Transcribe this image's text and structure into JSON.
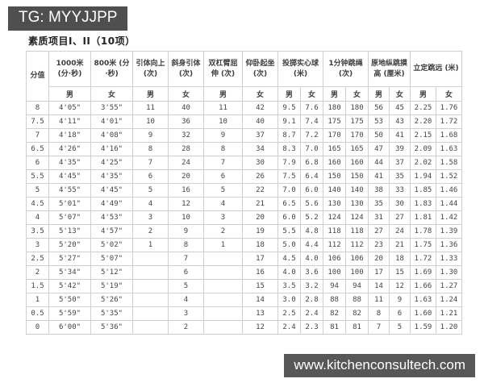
{
  "watermark_top": {
    "text": "TG: MYYJJPP"
  },
  "watermark_bottom": {
    "text": "www.kitchenconsultech.com"
  },
  "colors": {
    "badge_top_bg": "#4f4f4f",
    "badge_bottom_bg": "#575757",
    "badge_text": "#ffffff",
    "table_border": "#cfcfcf"
  },
  "table": {
    "title": "素质项目I、II（10项）",
    "score_header": "分值",
    "items": [
      {
        "label": "1000米 (分·秒)",
        "genders": [
          "男"
        ]
      },
      {
        "label": "800米 (分·秒)",
        "genders": [
          "女"
        ]
      },
      {
        "label": "引体向上 (次)",
        "genders": [
          "男"
        ]
      },
      {
        "label": "斜身引体 (次)",
        "genders": [
          "女"
        ]
      },
      {
        "label": "双杠臂屈伸 (次)",
        "genders": [
          "男"
        ]
      },
      {
        "label": "仰卧起坐 (次)",
        "genders": [
          "女"
        ]
      },
      {
        "label": "投掷实心球 (米)",
        "genders": [
          "男",
          "女"
        ]
      },
      {
        "label": "1分钟跳绳 (次)",
        "genders": [
          "男",
          "女"
        ]
      },
      {
        "label": "原地纵跳摸高 (厘米)",
        "genders": [
          "男",
          "女"
        ]
      },
      {
        "label": "立定跳远 (米)",
        "genders": [
          "男",
          "女"
        ]
      }
    ],
    "rows": [
      [
        "8",
        "4'05\"",
        "3'55\"",
        "11",
        "40",
        "11",
        "42",
        "9.5",
        "7.6",
        "180",
        "180",
        "56",
        "45",
        "2.25",
        "1.76"
      ],
      [
        "7.5",
        "4'11\"",
        "4'01\"",
        "10",
        "36",
        "10",
        "40",
        "9.1",
        "7.4",
        "175",
        "175",
        "53",
        "43",
        "2.20",
        "1.72"
      ],
      [
        "7",
        "4'18\"",
        "4'08\"",
        "9",
        "32",
        "9",
        "37",
        "8.7",
        "7.2",
        "170",
        "170",
        "50",
        "41",
        "2.15",
        "1.68"
      ],
      [
        "6.5",
        "4'26\"",
        "4'16\"",
        "8",
        "28",
        "8",
        "34",
        "8.3",
        "7.0",
        "165",
        "165",
        "47",
        "39",
        "2.09",
        "1.63"
      ],
      [
        "6",
        "4'35\"",
        "4'25\"",
        "7",
        "24",
        "7",
        "30",
        "7.9",
        "6.8",
        "160",
        "160",
        "44",
        "37",
        "2.02",
        "1.58"
      ],
      [
        "5.5",
        "4'45\"",
        "4'35\"",
        "6",
        "20",
        "6",
        "26",
        "7.5",
        "6.4",
        "150",
        "150",
        "41",
        "35",
        "1.94",
        "1.52"
      ],
      [
        "5",
        "4'55\"",
        "4'45\"",
        "5",
        "16",
        "5",
        "22",
        "7.0",
        "6.0",
        "140",
        "140",
        "38",
        "33",
        "1.85",
        "1.46"
      ],
      [
        "4.5",
        "5'01\"",
        "4'49\"",
        "4",
        "12",
        "4",
        "21",
        "6.5",
        "5.6",
        "130",
        "130",
        "35",
        "30",
        "1.83",
        "1.44"
      ],
      [
        "4",
        "5'07\"",
        "4'53\"",
        "3",
        "10",
        "3",
        "20",
        "6.0",
        "5.2",
        "124",
        "124",
        "31",
        "27",
        "1.81",
        "1.42"
      ],
      [
        "3.5",
        "5'13\"",
        "4'57\"",
        "2",
        "9",
        "2",
        "19",
        "5.5",
        "4.8",
        "118",
        "118",
        "27",
        "24",
        "1.78",
        "1.39"
      ],
      [
        "3",
        "5'20\"",
        "5'02\"",
        "1",
        "8",
        "1",
        "18",
        "5.0",
        "4.4",
        "112",
        "112",
        "23",
        "21",
        "1.75",
        "1.36"
      ],
      [
        "2.5",
        "5'27\"",
        "5'07\"",
        "",
        "7",
        "",
        "17",
        "4.5",
        "4.0",
        "106",
        "106",
        "20",
        "18",
        "1.72",
        "1.33"
      ],
      [
        "2",
        "5'34\"",
        "5'12\"",
        "",
        "6",
        "",
        "16",
        "4.0",
        "3.6",
        "100",
        "100",
        "17",
        "15",
        "1.69",
        "1.30"
      ],
      [
        "1.5",
        "5'42\"",
        "5'19\"",
        "",
        "5",
        "",
        "15",
        "3.5",
        "3.2",
        "94",
        "94",
        "14",
        "12",
        "1.66",
        "1.27"
      ],
      [
        "1",
        "5'50\"",
        "5'26\"",
        "",
        "4",
        "",
        "14",
        "3.0",
        "2.8",
        "88",
        "88",
        "11",
        "9",
        "1.63",
        "1.24"
      ],
      [
        "0.5",
        "5'59\"",
        "5'35\"",
        "",
        "3",
        "",
        "13",
        "2.5",
        "2.4",
        "82",
        "82",
        "8",
        "6",
        "1.60",
        "1.21"
      ],
      [
        "0",
        "6'00\"",
        "5'36\"",
        "",
        "2",
        "",
        "12",
        "2.4",
        "2.3",
        "81",
        "81",
        "7",
        "5",
        "1.59",
        "1.20"
      ]
    ]
  }
}
